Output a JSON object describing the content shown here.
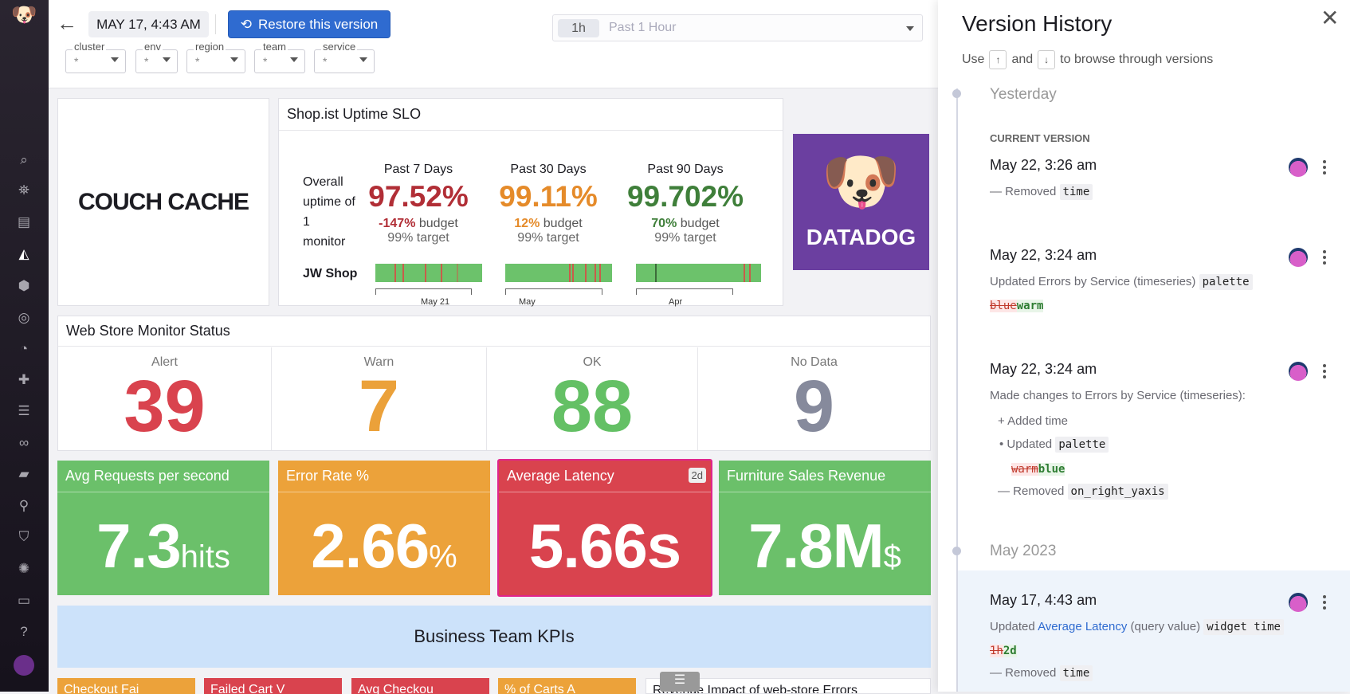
{
  "sidebar": {
    "icons": [
      "datadog-logo",
      "search-icon",
      "binoculars-icon",
      "list-icon",
      "dashboard-chart-icon",
      "infrastructure-icon",
      "apm-target-icon",
      "gauge-icon",
      "puzzle-icon",
      "logs-filter-icon",
      "link-icon",
      "notebook-icon",
      "synthetics-icon",
      "security-icon",
      "network-icon",
      "chat-icon",
      "help-icon",
      "user-avatar"
    ]
  },
  "header": {
    "version_date": "MAY 17, 4:43 AM",
    "restore_label": "Restore this version",
    "time_chip": "1h",
    "time_label": "Past 1 Hour",
    "filters": [
      {
        "label": "cluster",
        "value": "*"
      },
      {
        "label": "env",
        "value": "*"
      },
      {
        "label": "region",
        "value": "*"
      },
      {
        "label": "team",
        "value": "*"
      },
      {
        "label": "service",
        "value": "*"
      }
    ]
  },
  "widgets": {
    "logo_text": "COUCH CACHE",
    "datadog_logo": "DATADOG",
    "slo": {
      "title": "Shop.ist Uptime SLO",
      "row_label": "Overall uptime of 1 monitor",
      "monitor": "JW Shop",
      "columns": [
        {
          "period": "Past 7 Days",
          "value": "97.52%",
          "budget": "-147%",
          "budget_word": "budget",
          "target": "99% target",
          "axis": "May 21",
          "color": "#b12e36"
        },
        {
          "period": "Past 30 Days",
          "value": "99.11%",
          "budget": "12%",
          "budget_word": "budget",
          "target": "99% target",
          "axis": "May",
          "color": "#e58b2a"
        },
        {
          "period": "Past 90 Days",
          "value": "99.702%",
          "budget": "70%",
          "budget_word": "budget",
          "target": "99% target",
          "axis": "Apr",
          "color": "#3f7f3a"
        }
      ]
    },
    "monitor_status": {
      "title": "Web Store Monitor Status",
      "cells": [
        {
          "label": "Alert",
          "value": "39",
          "color": "#d9434e"
        },
        {
          "label": "Warn",
          "value": "7",
          "color": "#eba13a"
        },
        {
          "label": "OK",
          "value": "88",
          "color": "#64c065"
        },
        {
          "label": "No Data",
          "value": "9",
          "color": "#868a9c"
        }
      ]
    },
    "query_values": [
      {
        "title": "Avg Requests per second",
        "value": "7.3",
        "unit": "hits",
        "color": "#6bc06a"
      },
      {
        "title": "Error Rate %",
        "value": "2.66",
        "unit": "%",
        "color": "#eca23a"
      },
      {
        "title": "Average Latency",
        "value": "5.66s",
        "unit": "",
        "badge": "2d",
        "color": "#d9434e",
        "selected": true
      },
      {
        "title": "Furniture Sales Revenue",
        "value": "7.8M",
        "unit": "$",
        "color": "#6bc06a"
      }
    ],
    "banner": "Business Team KPIs",
    "bottom_row": [
      "Checkout Fai",
      "Failed Cart V",
      "Avg Checkou",
      "% of Carts A",
      "Revenue Impact of web-store Errors"
    ]
  },
  "panel": {
    "title": "Version History",
    "hint_use": "Use",
    "hint_up": "↑",
    "hint_and": "and",
    "hint_down": "↓",
    "hint_rest": "to browse through versions",
    "groups": [
      {
        "label": "Yesterday"
      },
      {
        "label": "May 2023"
      }
    ],
    "current_label": "CURRENT VERSION",
    "versions": [
      {
        "date": "May 22, 3:26 am",
        "removed": "Removed",
        "removed_code": "time"
      },
      {
        "date": "May 22, 3:24 am",
        "desc": "Updated Errors by Service (timeseries)",
        "code": "palette",
        "del": "blue",
        "add": "warm"
      },
      {
        "date": "May 22, 3:24 am",
        "desc": "Made changes to Errors by Service (timeseries):",
        "added": "Added time",
        "updated": "Updated",
        "updated_code": "palette",
        "del": "warm",
        "add": "blue",
        "removed": "Removed",
        "removed_code": "on_right_yaxis"
      },
      {
        "date": "May 17, 4:43 am",
        "desc_pre": "Updated",
        "link": "Average Latency",
        "desc_post": "(query value)",
        "code": "widget time",
        "del": "1h",
        "add": "2d",
        "removed": "Removed",
        "removed_code": "time",
        "selected": true
      }
    ]
  }
}
